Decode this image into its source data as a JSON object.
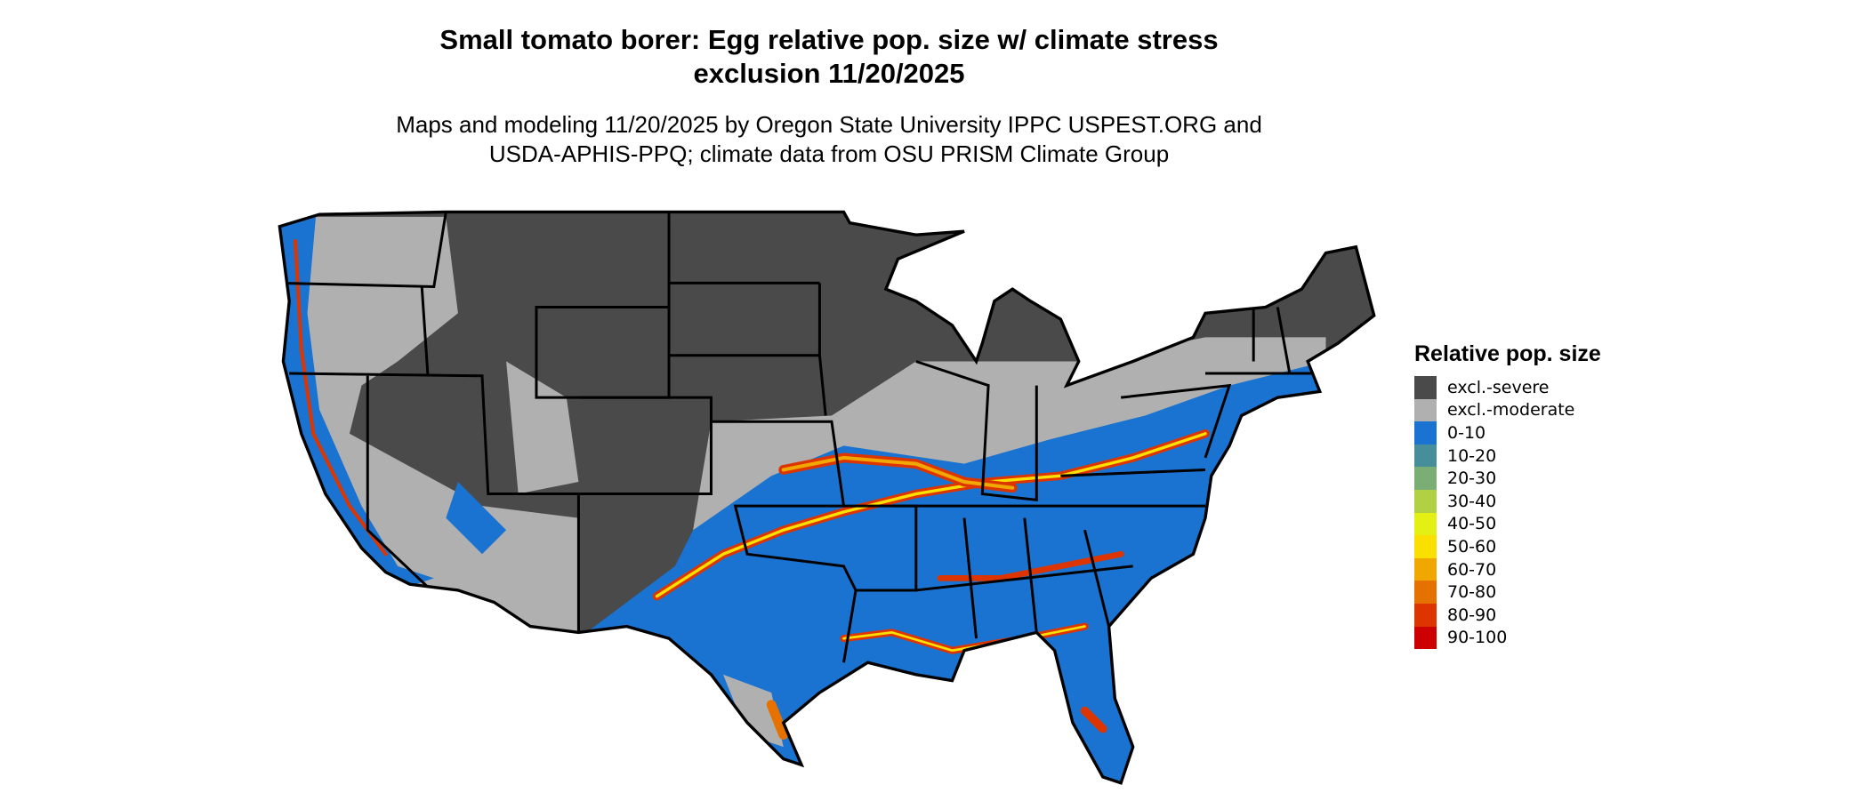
{
  "title": {
    "line1": "Small tomato borer: Egg relative pop. size w/ climate stress",
    "line2": "exclusion 11/20/2025"
  },
  "subtitle": {
    "line1": "Maps and modeling 11/20/2025 by Oregon State University IPPC USPEST.ORG and",
    "line2": "USDA-APHIS-PPQ; climate data from OSU PRISM Climate Group"
  },
  "legend": {
    "title": "Relative pop. size",
    "items": [
      {
        "label": "excl.-severe",
        "color": "#4a4a4a"
      },
      {
        "label": "excl.-moderate",
        "color": "#b0b0b0"
      },
      {
        "label": "0-10",
        "color": "#1a73d0"
      },
      {
        "label": "10-20",
        "color": "#468e9a"
      },
      {
        "label": "20-30",
        "color": "#7aae74"
      },
      {
        "label": "30-40",
        "color": "#b2d044"
      },
      {
        "label": "40-50",
        "color": "#e4f014"
      },
      {
        "label": "50-60",
        "color": "#f9e000"
      },
      {
        "label": "60-70",
        "color": "#f0a800"
      },
      {
        "label": "70-80",
        "color": "#e57200"
      },
      {
        "label": "80-90",
        "color": "#dc3500"
      },
      {
        "label": "90-100",
        "color": "#cc0000"
      }
    ]
  },
  "map": {
    "region": "Contiguous United States",
    "state_borders_color": "#000000"
  }
}
